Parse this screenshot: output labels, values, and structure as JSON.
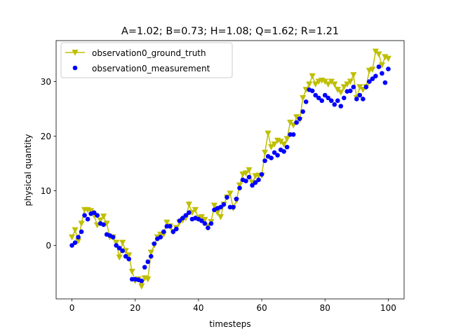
{
  "chart_data": {
    "type": "line",
    "title": "A=1.02; B=0.73; H=1.08; Q=1.62; R=1.21",
    "xlabel": "timesteps",
    "ylabel": "physical quantity",
    "xlim": [
      -5,
      105
    ],
    "ylim": [
      -9.8,
      37.5
    ],
    "xticks": [
      0,
      20,
      40,
      60,
      80,
      100
    ],
    "yticks": [
      0,
      10,
      20,
      30
    ],
    "grid": false,
    "legend_placement": "top-left",
    "colors": {
      "ground_truth": "#bfbf00",
      "measurement": "#0000ff"
    },
    "series": [
      {
        "name": "observation0_ground_truth",
        "style": "line-with-triangle-down-markers",
        "x": [
          0,
          1,
          2,
          3,
          4,
          5,
          6,
          7,
          8,
          9,
          10,
          11,
          12,
          13,
          14,
          15,
          16,
          17,
          18,
          19,
          20,
          21,
          22,
          23,
          24,
          25,
          26,
          27,
          28,
          29,
          30,
          31,
          32,
          33,
          34,
          35,
          36,
          37,
          38,
          39,
          40,
          41,
          42,
          43,
          44,
          45,
          46,
          47,
          48,
          49,
          50,
          51,
          52,
          53,
          54,
          55,
          56,
          57,
          58,
          59,
          60,
          61,
          62,
          63,
          64,
          65,
          66,
          67,
          68,
          69,
          70,
          71,
          72,
          73,
          74,
          75,
          76,
          77,
          78,
          79,
          80,
          81,
          82,
          83,
          84,
          85,
          86,
          87,
          88,
          89,
          90,
          91,
          92,
          93,
          94,
          95,
          96,
          97,
          98,
          99,
          100
        ],
        "y": [
          1.5,
          2.8,
          0.8,
          4.0,
          6.5,
          6.5,
          6.3,
          5.5,
          3.7,
          4.6,
          5.3,
          4.0,
          1.5,
          1.5,
          0.5,
          -2.2,
          0.5,
          -1.0,
          -1.8,
          -4.8,
          -6.5,
          -6.2,
          -7.5,
          -6.0,
          -6.2,
          -1.3,
          0.0,
          1.5,
          2.0,
          2.0,
          4.2,
          3.5,
          2.5,
          3.2,
          4.2,
          4.6,
          5.0,
          7.5,
          6.0,
          6.5,
          5.0,
          5.2,
          4.7,
          3.5,
          4.3,
          7.3,
          6.0,
          5.2,
          7.5,
          8.8,
          9.5,
          6.8,
          8.2,
          11.0,
          13.0,
          13.2,
          13.8,
          11.5,
          12.7,
          12.8,
          12.8,
          17.0,
          20.5,
          18.0,
          18.5,
          19.2,
          19.0,
          18.5,
          19.5,
          22.5,
          22.0,
          23.5,
          23.0,
          27.0,
          28.5,
          29.5,
          31.0,
          29.5,
          30.0,
          30.2,
          30.0,
          29.5,
          30.0,
          29.5,
          28.5,
          28.0,
          29.0,
          29.5,
          30.0,
          31.2,
          27.0,
          29.0,
          28.5,
          29.0,
          32.0,
          32.2,
          35.5,
          35.0,
          33.0,
          34.5,
          34.2
        ]
      },
      {
        "name": "observation0_measurement",
        "style": "scatter-circle",
        "x": [
          0,
          1,
          2,
          3,
          4,
          5,
          6,
          7,
          8,
          9,
          10,
          11,
          12,
          13,
          14,
          15,
          16,
          17,
          18,
          19,
          20,
          21,
          22,
          23,
          24,
          25,
          26,
          27,
          28,
          29,
          30,
          31,
          32,
          33,
          34,
          35,
          36,
          37,
          38,
          39,
          40,
          41,
          42,
          43,
          44,
          45,
          46,
          47,
          48,
          49,
          50,
          51,
          52,
          53,
          54,
          55,
          56,
          57,
          58,
          59,
          60,
          61,
          62,
          63,
          64,
          65,
          66,
          67,
          68,
          69,
          70,
          71,
          72,
          73,
          74,
          75,
          76,
          77,
          78,
          79,
          80,
          81,
          82,
          83,
          84,
          85,
          86,
          87,
          88,
          89,
          90,
          91,
          92,
          93,
          94,
          95,
          96,
          97,
          98,
          99,
          100
        ],
        "y": [
          0.0,
          0.5,
          1.5,
          2.5,
          5.5,
          4.8,
          5.8,
          6.0,
          5.5,
          4.0,
          3.8,
          2.0,
          1.8,
          1.5,
          0.0,
          -0.5,
          -1.0,
          -2.0,
          -2.5,
          -6.2,
          -6.2,
          -6.3,
          -6.5,
          -4.0,
          -3.0,
          -2.0,
          0.3,
          1.2,
          1.5,
          2.5,
          3.5,
          3.5,
          2.5,
          3.0,
          4.5,
          5.0,
          5.5,
          6.0,
          4.8,
          5.0,
          4.8,
          4.5,
          4.0,
          3.2,
          4.0,
          6.5,
          6.8,
          7.0,
          7.5,
          8.8,
          7.0,
          7.0,
          8.5,
          10.5,
          12.0,
          11.8,
          12.5,
          11.0,
          11.5,
          12.0,
          13.0,
          15.5,
          16.3,
          16.0,
          17.0,
          16.5,
          17.5,
          17.2,
          18.0,
          20.3,
          20.3,
          22.5,
          23.2,
          24.5,
          26.3,
          28.5,
          28.3,
          27.5,
          27.0,
          26.5,
          27.5,
          27.0,
          26.5,
          25.8,
          26.5,
          25.5,
          27.0,
          28.2,
          28.3,
          29.0,
          26.8,
          27.5,
          26.8,
          29.0,
          30.0,
          30.5,
          31.0,
          32.7,
          31.5,
          29.8,
          32.3
        ]
      }
    ]
  }
}
